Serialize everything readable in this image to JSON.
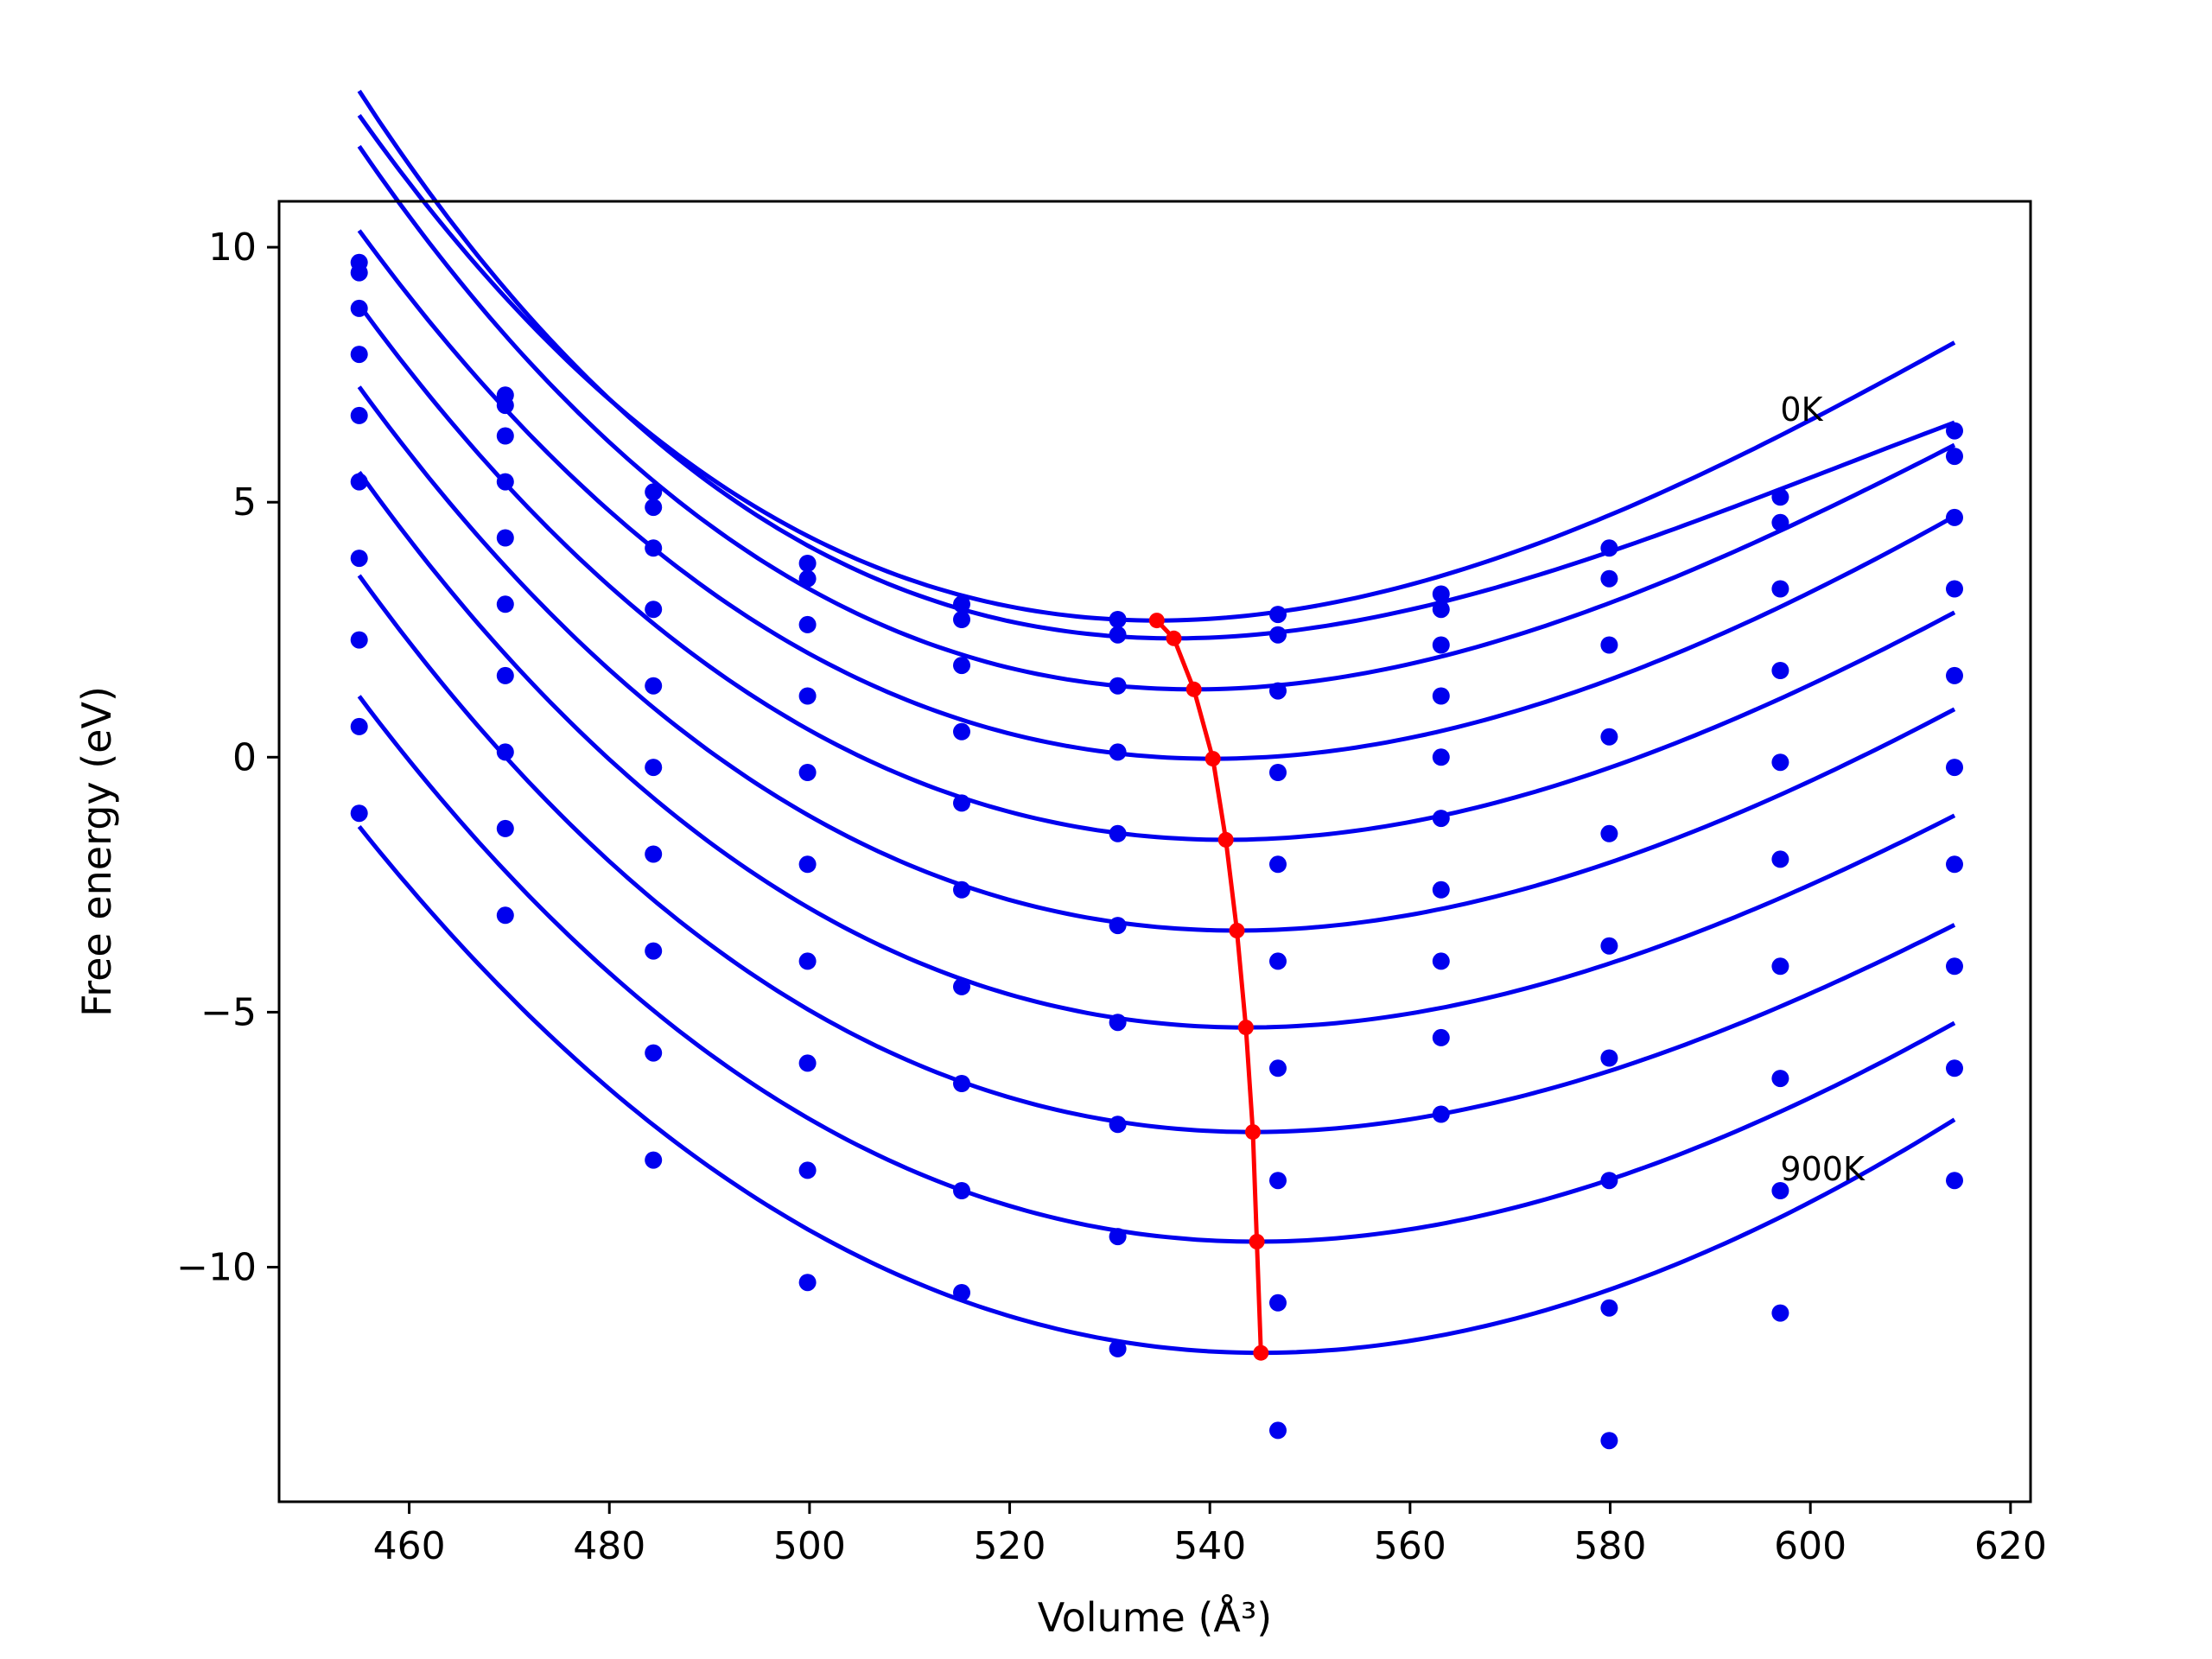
{
  "chart_data": {
    "type": "line",
    "xlabel": "Volume (Å³)",
    "ylabel": "Free energy (eV)",
    "xlim": [
      447,
      622
    ],
    "ylim": [
      -14.6,
      10.9
    ],
    "xticks": [
      460,
      480,
      500,
      520,
      540,
      560,
      580,
      600,
      620
    ],
    "yticks": [
      10,
      5,
      0,
      -5,
      -10
    ],
    "ytick_labels": [
      "10",
      "5",
      "0",
      "−5",
      "−10"
    ],
    "grid": false,
    "legend": "none",
    "colors": {
      "fit": "#0000ee",
      "points": "#0000ee",
      "minimum": "#ff0000"
    },
    "annotations": [
      {
        "text": "0K",
        "x": 597,
        "y": 6.6
      },
      {
        "text": "900K",
        "x": 597,
        "y": -8.3
      }
    ],
    "x": [
      455,
      469.6,
      484.4,
      499.8,
      515.2,
      530.8,
      546.8,
      563.1,
      579.9,
      597.0,
      614.4
    ],
    "series": [
      {
        "points": [
          9.7,
          7.1,
          5.2,
          3.8,
          3.0,
          2.7,
          2.8,
          3.2,
          4.1,
          5.1,
          6.4
        ],
        "fit": {
          "v0": 534.7,
          "e0": 2.68,
          "a": 0.001209,
          "b": 4.4e-06
        }
      },
      {
        "points": [
          9.5,
          6.9,
          4.9,
          3.5,
          2.7,
          2.4,
          2.4,
          2.9,
          3.5,
          4.6,
          5.9
        ],
        "fit": {
          "v0": 536.4,
          "e0": 2.33,
          "a": 0.001148,
          "b": 5.8e-06
        }
      },
      {
        "points": [
          8.8,
          6.3,
          4.1,
          2.6,
          1.8,
          1.4,
          1.3,
          2.2,
          2.2,
          3.3,
          4.7
        ],
        "fit": {
          "v0": 538.4,
          "e0": 1.33,
          "a": 0.001164,
          "b": 4.4e-06
        }
      },
      {
        "points": [
          7.9,
          5.4,
          2.9,
          1.2,
          0.5,
          0.1,
          -0.3,
          1.2,
          0.4,
          1.7,
          3.3
        ],
        "fit": {
          "v0": 540.3,
          "e0": -0.03,
          "a": 0.001125,
          "b": 3.5e-06
        }
      },
      {
        "points": [
          6.7,
          4.3,
          1.4,
          -0.3,
          -0.9,
          -1.5,
          -2.1,
          0.0,
          -1.5,
          -0.1,
          1.6
        ],
        "fit": {
          "v0": 541.6,
          "e0": -1.62,
          "a": 0.001096,
          "b": 3.5e-06
        }
      },
      {
        "points": [
          5.4,
          3.0,
          -0.2,
          -2.1,
          -2.6,
          -3.3,
          -4.0,
          -1.2,
          -3.7,
          -2.0,
          -0.2
        ],
        "fit": {
          "v0": 542.7,
          "e0": -3.4,
          "a": 0.001088,
          "b": 3.4e-06
        }
      },
      {
        "points": [
          3.9,
          1.6,
          -1.9,
          -4.0,
          -4.5,
          -5.2,
          -6.1,
          -2.6,
          -5.9,
          -4.1,
          -2.1
        ],
        "fit": {
          "v0": 543.6,
          "e0": -5.3,
          "a": 0.001077,
          "b": 3.5e-06
        }
      },
      {
        "points": [
          2.3,
          0.1,
          -3.8,
          -6.0,
          -6.4,
          -7.2,
          -8.3,
          -4.0,
          -8.3,
          -6.3,
          -4.1
        ],
        "fit": {
          "v0": 544.3,
          "e0": -7.35,
          "a": 0.001065,
          "b": 3.4e-06
        }
      },
      {
        "points": [
          0.6,
          -1.4,
          -5.8,
          -8.1,
          -8.5,
          -9.4,
          -10.7,
          -5.5,
          -10.8,
          -8.5,
          -6.1
        ],
        "fit": {
          "v0": 544.7,
          "e0": -9.5,
          "a": 0.001078,
          "b": 2.8e-06
        }
      },
      {
        "points": [
          -1.1,
          -3.1,
          -7.9,
          -10.3,
          -10.5,
          -11.6,
          -13.2,
          -7.0,
          -13.4,
          -10.9,
          -8.3
        ],
        "fit": {
          "v0": 545.1,
          "e0": -11.68,
          "a": 0.001091,
          "b": 2e-06
        }
      }
    ],
    "minimum_line": {
      "x": [
        534.7,
        536.4,
        538.4,
        540.3,
        541.6,
        542.7,
        543.6,
        544.3,
        544.7,
        545.1
      ],
      "y": [
        2.68,
        2.33,
        1.33,
        -0.03,
        -1.62,
        -3.4,
        -5.3,
        -7.35,
        -9.5,
        -11.68
      ]
    },
    "fit_range": [
      455,
      614.4
    ]
  }
}
